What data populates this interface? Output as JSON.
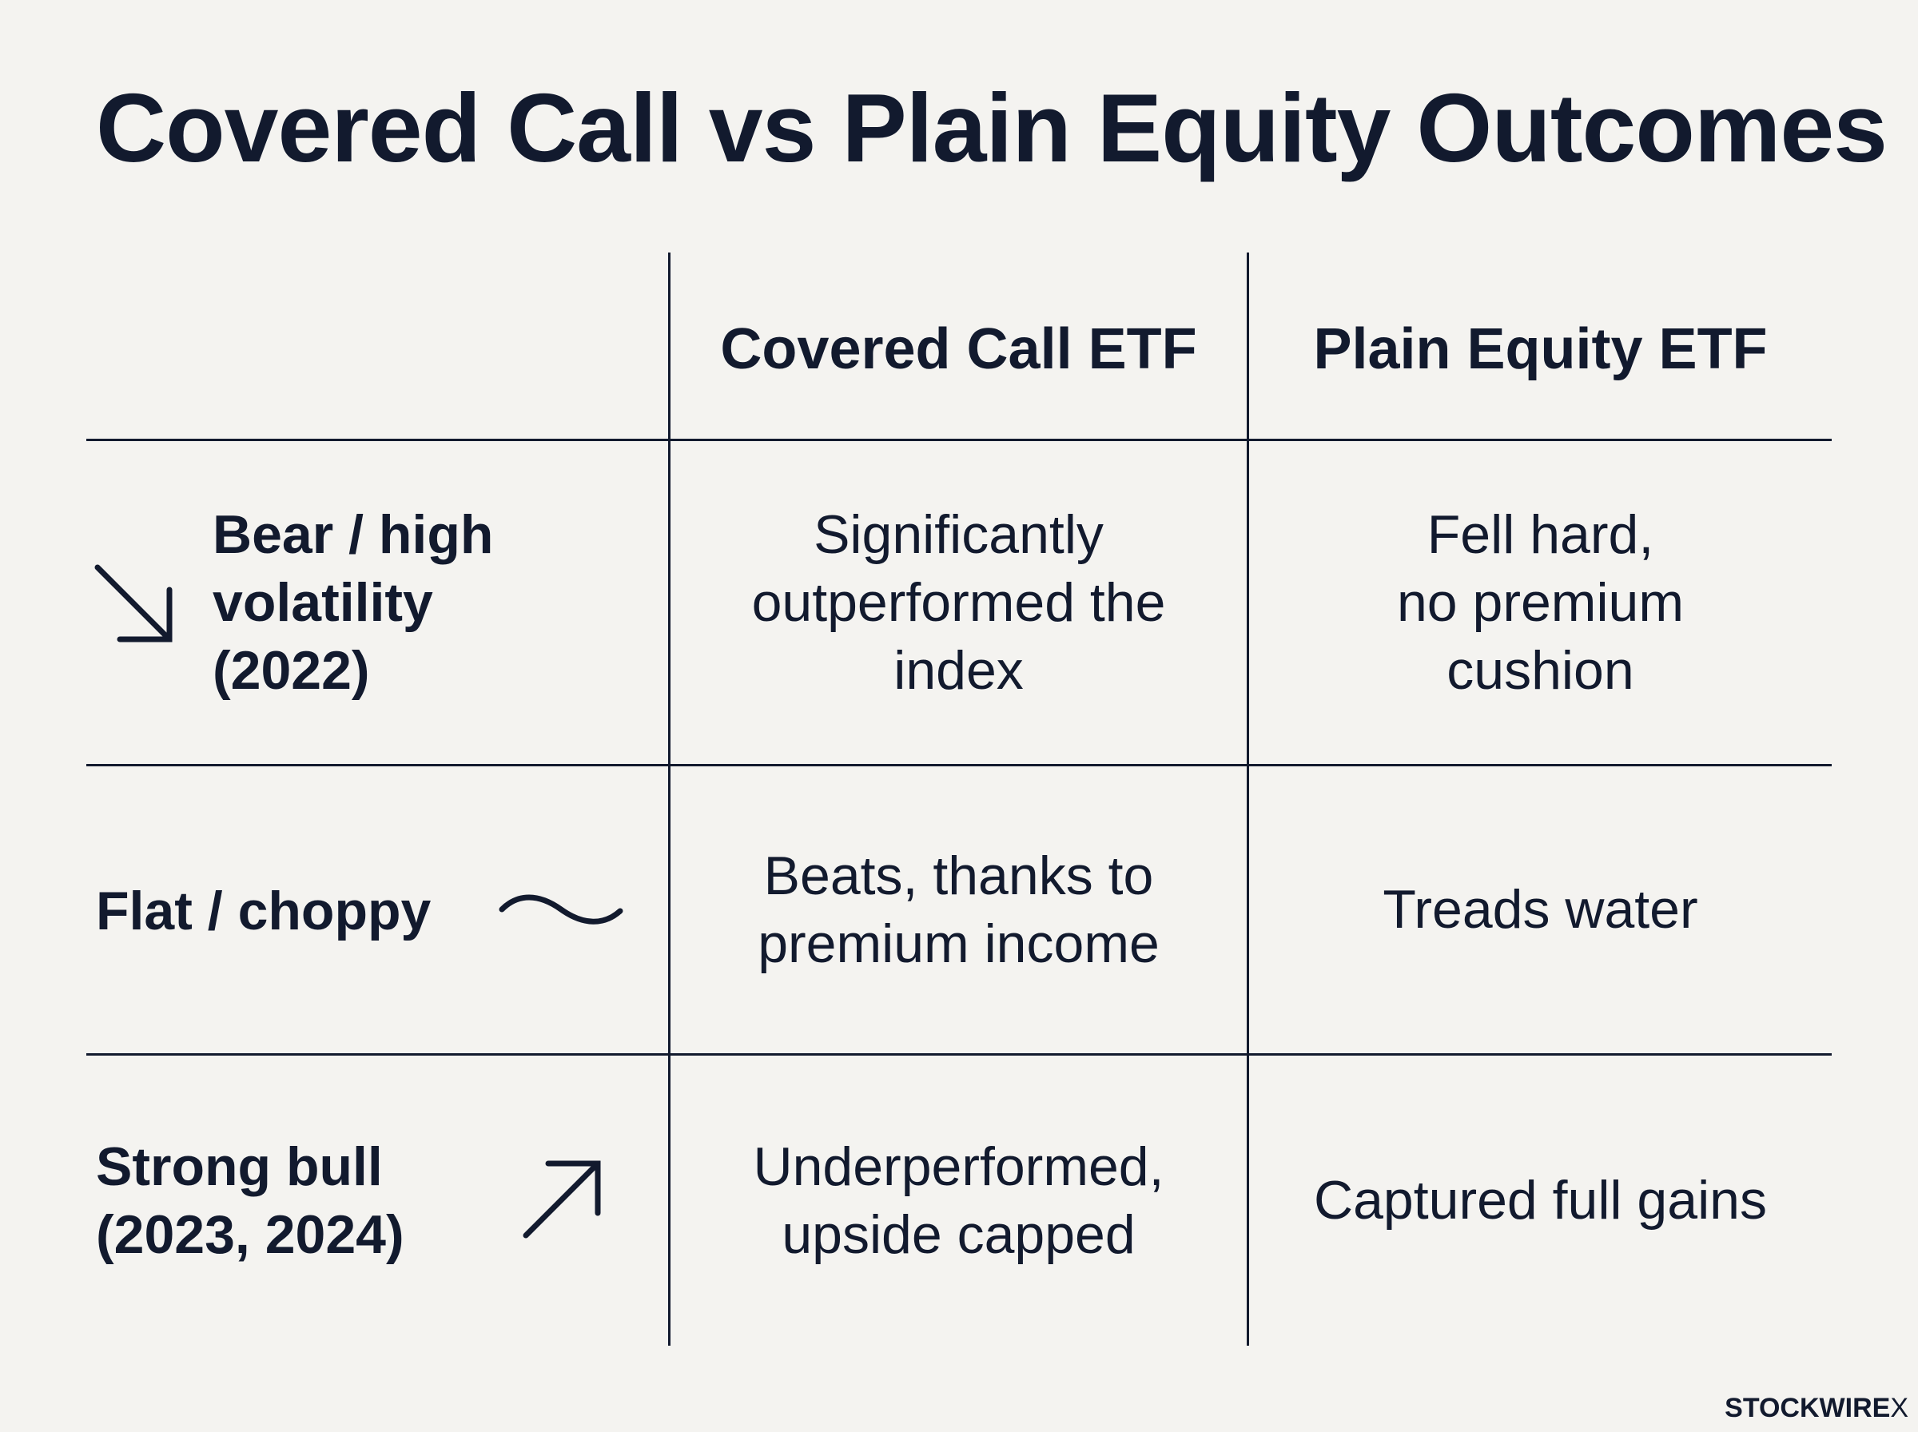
{
  "title": "Covered Call vs Plain Equity Outcomes",
  "columns": {
    "covered_call": "Covered Call ETF",
    "plain_equity": "Plain Equity ETF"
  },
  "rows": [
    {
      "scenario_lines": [
        "Bear / high",
        "volatility",
        "(2022)"
      ],
      "icon": "trend-down-arrow-icon",
      "covered_call_lines": [
        "Significantly",
        "outperformed the",
        "index"
      ],
      "plain_equity_lines": [
        "Fell hard,",
        "no premium",
        "cushion"
      ]
    },
    {
      "scenario_lines": [
        "Flat / choppy"
      ],
      "icon": "wave-icon",
      "covered_call_lines": [
        "Beats, thanks to",
        "premium income"
      ],
      "plain_equity_lines": [
        "Treads water"
      ]
    },
    {
      "scenario_lines": [
        "Strong bull",
        "(2023, 2024)"
      ],
      "icon": "trend-up-arrow-icon",
      "covered_call_lines": [
        "Underperformed,",
        "upside capped"
      ],
      "plain_equity_lines": [
        "Captured full gains"
      ]
    }
  ],
  "brand": {
    "name": "STOCKWIRE",
    "mark": "X"
  }
}
